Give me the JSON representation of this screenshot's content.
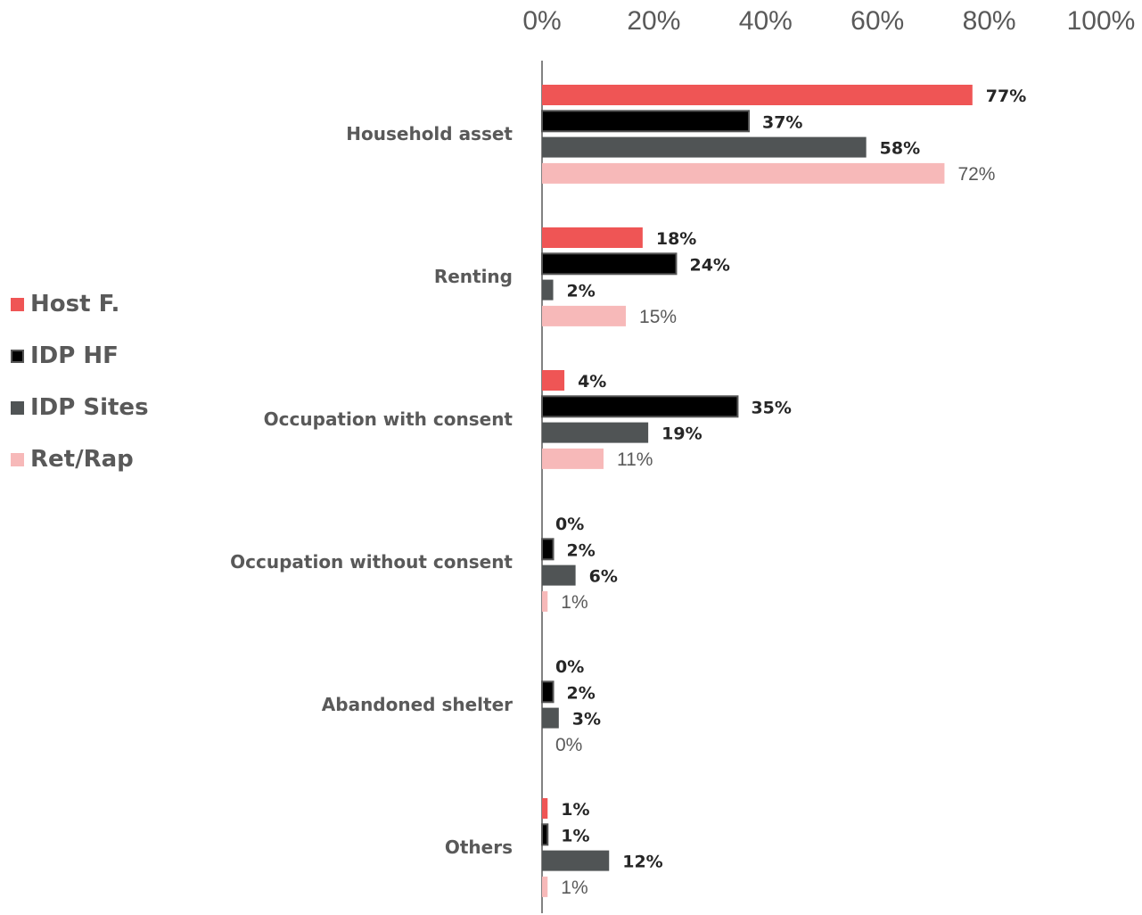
{
  "chart_data": {
    "type": "bar",
    "orientation": "horizontal",
    "categories": [
      "Household asset",
      "Renting",
      "Occupation with consent",
      "Occupation without consent",
      "Abandoned shelter",
      "Others"
    ],
    "series": [
      {
        "name": "Host F.",
        "color": "#ef5555",
        "values": [
          77,
          18,
          4,
          0,
          0,
          1
        ],
        "labels": [
          "77%",
          "18%",
          "4%",
          "0%",
          "0%",
          "1%"
        ]
      },
      {
        "name": "IDP HF",
        "color": "#000000",
        "values": [
          37,
          24,
          35,
          2,
          2,
          1
        ],
        "labels": [
          "37%",
          "24%",
          "35%",
          "2%",
          "2%",
          "1%"
        ]
      },
      {
        "name": "IDP Sites",
        "color": "#505455",
        "values": [
          58,
          2,
          19,
          6,
          3,
          12
        ],
        "labels": [
          "58%",
          "2%",
          "19%",
          "6%",
          "3%",
          "12%"
        ]
      },
      {
        "name": "Ret/Rap",
        "color": "#f7b9b9",
        "values": [
          72,
          15,
          11,
          1,
          0,
          1
        ],
        "labels": [
          "72%",
          "15%",
          "11%",
          "1%",
          "0%",
          "1%"
        ]
      }
    ],
    "xlim": [
      0,
      100
    ],
    "ticks": [
      "0%",
      "20%",
      "40%",
      "60%",
      "80%",
      "100%"
    ],
    "axis_position": "top",
    "grid": false,
    "legend_position": "left"
  }
}
